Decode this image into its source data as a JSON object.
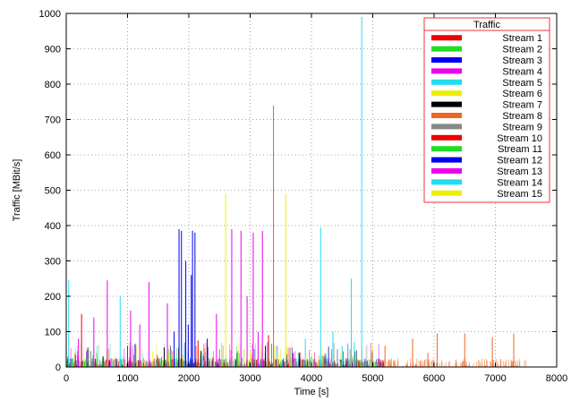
{
  "chart_data": {
    "type": "line",
    "title": "",
    "xlabel": "Time [s]",
    "ylabel": "Traffic [MBit/s]",
    "xlim": [
      0,
      8000
    ],
    "ylim": [
      0,
      1000
    ],
    "xticks": [
      0,
      1000,
      2000,
      3000,
      4000,
      5000,
      6000,
      7000,
      8000
    ],
    "yticks": [
      0,
      100,
      200,
      300,
      400,
      500,
      600,
      700,
      800,
      900,
      1000
    ],
    "grid": true,
    "legend": {
      "title": "Traffic",
      "position": "top-right"
    },
    "series": [
      {
        "name": "Stream 1",
        "color": "#ee0000",
        "spikes": [
          [
            150,
            35
          ],
          [
            700,
            20
          ],
          [
            1500,
            25
          ],
          [
            2300,
            30
          ],
          [
            3100,
            20
          ],
          [
            3700,
            40
          ]
        ]
      },
      {
        "name": "Stream 2",
        "color": "#22dd22",
        "spikes": [
          [
            100,
            25
          ],
          [
            300,
            15
          ],
          [
            900,
            20
          ],
          [
            1800,
            25
          ],
          [
            2600,
            20
          ],
          [
            3500,
            15
          ]
        ]
      },
      {
        "name": "Stream 3",
        "color": "#0000ee",
        "spikes": [
          [
            1840,
            390
          ],
          [
            1880,
            385
          ],
          [
            1950,
            300
          ],
          [
            2060,
            385
          ],
          [
            2100,
            380
          ],
          [
            2040,
            260
          ]
        ]
      },
      {
        "name": "Stream 4",
        "color": "#ee00ee",
        "spikes": [
          [
            670,
            245
          ],
          [
            1350,
            240
          ],
          [
            2700,
            390
          ],
          [
            2850,
            385
          ],
          [
            3050,
            380
          ],
          [
            3200,
            385
          ],
          [
            1200,
            120
          ]
        ]
      },
      {
        "name": "Stream 5",
        "color": "#22ddee",
        "spikes": [
          [
            40,
            245
          ],
          [
            880,
            200
          ],
          [
            4150,
            395
          ],
          [
            4650,
            250
          ],
          [
            4820,
            990
          ],
          [
            4980,
            40
          ]
        ]
      },
      {
        "name": "Stream 6",
        "color": "#eeee00",
        "spikes": [
          [
            2600,
            490
          ],
          [
            3580,
            490
          ],
          [
            3400,
            60
          ],
          [
            2900,
            50
          ]
        ]
      },
      {
        "name": "Stream 7",
        "color": "#000000",
        "spikes": [
          [
            600,
            30
          ],
          [
            1600,
            55
          ],
          [
            2200,
            45
          ],
          [
            3250,
            60
          ],
          [
            3800,
            40
          ]
        ]
      },
      {
        "name": "Stream 8",
        "color": "#ee6622",
        "spikes": [
          [
            3380,
            740
          ],
          [
            5200,
            60
          ],
          [
            5650,
            80
          ],
          [
            6050,
            95
          ],
          [
            6500,
            95
          ],
          [
            6950,
            85
          ],
          [
            7300,
            95
          ],
          [
            5900,
            40
          ]
        ]
      },
      {
        "name": "Stream 9",
        "color": "#888888",
        "spikes": [
          [
            400,
            45
          ],
          [
            1100,
            35
          ],
          [
            2500,
            50
          ],
          [
            3650,
            55
          ],
          [
            4200,
            30
          ]
        ]
      },
      {
        "name": "Stream 10",
        "color": "#ee0000",
        "spikes": [
          [
            250,
            150
          ],
          [
            1000,
            60
          ],
          [
            2150,
            75
          ],
          [
            3300,
            90
          ]
        ]
      },
      {
        "name": "Stream 11",
        "color": "#22dd22",
        "spikes": [
          [
            500,
            40
          ],
          [
            1700,
            35
          ],
          [
            2800,
            45
          ],
          [
            4000,
            30
          ]
        ]
      },
      {
        "name": "Stream 12",
        "color": "#0000ee",
        "spikes": [
          [
            1760,
            100
          ],
          [
            1990,
            120
          ],
          [
            2300,
            80
          ]
        ]
      },
      {
        "name": "Stream 13",
        "color": "#ee00ee",
        "spikes": [
          [
            200,
            80
          ],
          [
            450,
            140
          ],
          [
            1050,
            160
          ],
          [
            1650,
            180
          ],
          [
            2450,
            150
          ],
          [
            2950,
            200
          ],
          [
            3130,
            100
          ]
        ]
      },
      {
        "name": "Stream 14",
        "color": "#22ddee",
        "spikes": [
          [
            3900,
            80
          ],
          [
            4350,
            100
          ],
          [
            4500,
            60
          ],
          [
            4700,
            70
          ]
        ]
      },
      {
        "name": "Stream 15",
        "color": "#eeee00",
        "spikes": [
          [
            800,
            30
          ],
          [
            1900,
            35
          ],
          [
            3000,
            45
          ],
          [
            3450,
            40
          ]
        ]
      }
    ]
  }
}
